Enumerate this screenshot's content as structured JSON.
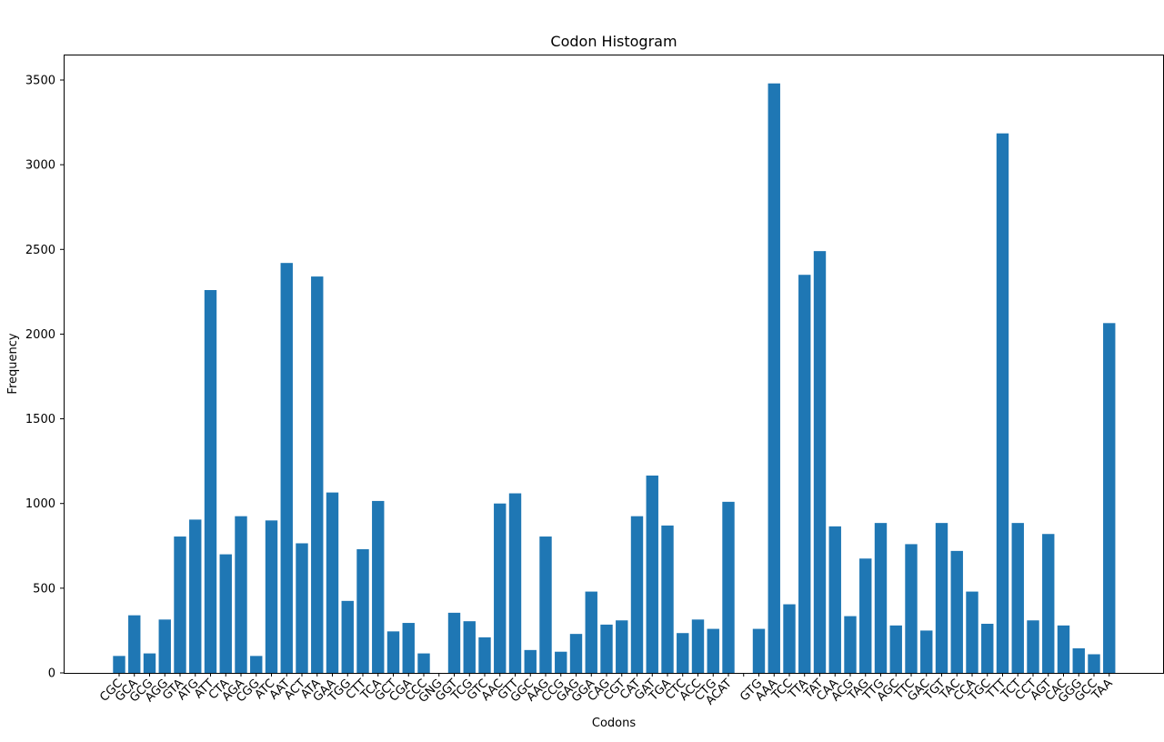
{
  "chart_data": {
    "type": "bar",
    "title": "Codon Histogram",
    "xlabel": "Codons",
    "ylabel": "Frequency",
    "ylim": [
      0,
      3650
    ],
    "yticks": [
      0,
      500,
      1000,
      1500,
      2000,
      2500,
      3000,
      3500
    ],
    "grid": false,
    "bar_color": "#1f77b4",
    "categories": [
      "CGC",
      "GCA",
      "GCG",
      "AGG",
      "GTA",
      "ATG",
      "ATT",
      "CTA",
      "AGA",
      "CGG",
      "ATC",
      "AAT",
      "ACT",
      "ATA",
      "GAA",
      "TGG",
      "CTT",
      "TCA",
      "GCT",
      "CGA",
      "CCC",
      "GNG",
      "GGT",
      "TCG",
      "GTC",
      "AAC",
      "GTT",
      "GGC",
      "AAG",
      "CCG",
      "GAG",
      "GGA",
      "CAG",
      "CGT",
      "CAT",
      "GAT",
      "TGA",
      "CTC",
      "ACC",
      "CTG",
      "ACAT",
      "",
      "GTG",
      "AAA",
      "TCC",
      "TTA",
      "TAT",
      "CAA",
      "ACG",
      "TAG",
      "TTG",
      "AGC",
      "TTC",
      "GAC",
      "TGT",
      "TAC",
      "CCA",
      "TGC",
      "TTT",
      "TCT",
      "CCT",
      "AGT",
      "CAC",
      "GGG",
      "GCC",
      "TAA"
    ],
    "values": [
      100,
      340,
      115,
      315,
      805,
      905,
      2260,
      700,
      925,
      100,
      900,
      2420,
      765,
      2340,
      1065,
      425,
      730,
      1015,
      245,
      295,
      115,
      0,
      355,
      305,
      210,
      1000,
      1060,
      135,
      805,
      125,
      230,
      480,
      285,
      310,
      925,
      1165,
      870,
      235,
      315,
      260,
      1010,
      0,
      260,
      3480,
      405,
      2350,
      2490,
      865,
      335,
      675,
      885,
      280,
      760,
      250,
      885,
      720,
      480,
      290,
      3185,
      885,
      310,
      820,
      280,
      145,
      110,
      2065
    ]
  }
}
